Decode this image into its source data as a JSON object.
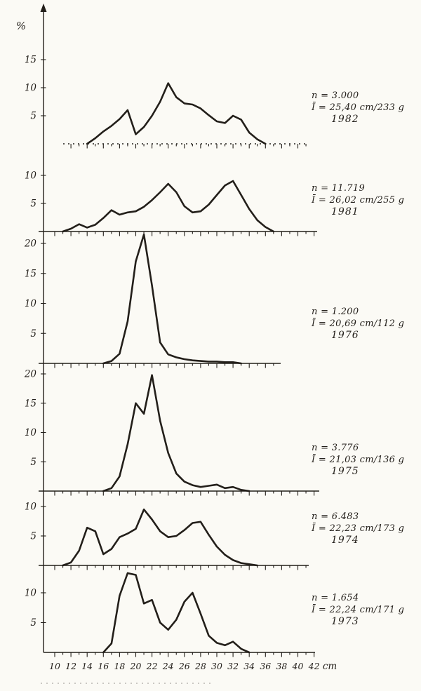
{
  "chart_data": {
    "type": "line",
    "xlabel": "cm",
    "ylabel": "%",
    "x_tick_labels": [
      "10",
      "12",
      "14",
      "16",
      "18",
      "20",
      "22",
      "24",
      "26",
      "28",
      "30",
      "32",
      "34",
      "36",
      "38",
      "40",
      "42"
    ],
    "panels": [
      {
        "year": "1982",
        "n_label": "n = 3.000",
        "mean_label": "Ī = 25,40 cm/233 g",
        "yticks": [
          5,
          10,
          15
        ],
        "x": [
          14,
          15,
          16,
          17,
          18,
          19,
          20,
          21,
          22,
          23,
          24,
          25,
          26,
          27,
          28,
          29,
          30,
          31,
          32,
          33,
          34,
          35,
          36
        ],
        "values": [
          0,
          1.0,
          2.2,
          3.2,
          4.4,
          6.0,
          1.7,
          3.0,
          5.0,
          7.5,
          10.8,
          8.3,
          7.2,
          7.0,
          6.3,
          5.1,
          4.0,
          3.7,
          5.0,
          4.3,
          2.0,
          0.8,
          0
        ]
      },
      {
        "year": "1981",
        "n_label": "n = 11.719",
        "mean_label": "Ī = 26,02 cm/255 g",
        "yticks": [
          5,
          10
        ],
        "x": [
          11,
          12,
          13,
          14,
          15,
          16,
          17,
          18,
          19,
          20,
          21,
          22,
          23,
          24,
          25,
          26,
          27,
          28,
          29,
          30,
          31,
          32,
          33,
          34,
          35,
          36,
          37
        ],
        "values": [
          0,
          0.5,
          1.3,
          0.7,
          1.2,
          2.4,
          3.8,
          3.0,
          3.4,
          3.6,
          4.4,
          5.6,
          7.0,
          8.5,
          7.0,
          4.5,
          3.4,
          3.6,
          4.8,
          6.5,
          8.2,
          9.0,
          6.5,
          4.0,
          2.0,
          0.8,
          0
        ]
      },
      {
        "year": "1976",
        "n_label": "n = 1.200",
        "mean_label": "Ī = 20,69 cm/112 g",
        "yticks": [
          5,
          10,
          15,
          20
        ],
        "x": [
          16,
          17,
          18,
          19,
          20,
          21,
          22,
          23,
          24,
          25,
          26,
          27,
          28,
          29,
          30,
          31,
          32,
          33
        ],
        "values": [
          0,
          0.4,
          1.6,
          7.0,
          17.0,
          21.5,
          13.0,
          3.5,
          1.5,
          1.0,
          0.7,
          0.5,
          0.4,
          0.3,
          0.3,
          0.2,
          0.2,
          0
        ]
      },
      {
        "year": "1975",
        "n_label": "n = 3.776",
        "mean_label": "Ī = 21,03 cm/136 g",
        "yticks": [
          5,
          10,
          15,
          20
        ],
        "x": [
          16,
          17,
          18,
          19,
          20,
          21,
          22,
          23,
          24,
          25,
          26,
          27,
          28,
          29,
          30,
          31,
          32,
          33,
          34
        ],
        "values": [
          0,
          0.5,
          2.5,
          8.0,
          15.0,
          13.2,
          19.8,
          12.0,
          6.5,
          3.0,
          1.6,
          1.0,
          0.7,
          0.9,
          1.1,
          0.5,
          0.7,
          0.2,
          0
        ]
      },
      {
        "year": "1974",
        "n_label": "n = 6.483",
        "mean_label": "Ī = 22,23 cm/173 g",
        "yticks": [
          5,
          10
        ],
        "x": [
          11,
          12,
          13,
          14,
          15,
          16,
          17,
          18,
          19,
          20,
          21,
          22,
          23,
          24,
          25,
          26,
          27,
          28,
          29,
          30,
          31,
          32,
          33,
          34,
          35
        ],
        "values": [
          0,
          0.5,
          2.5,
          6.4,
          5.8,
          1.9,
          2.8,
          4.8,
          5.4,
          6.2,
          9.5,
          7.8,
          5.8,
          4.8,
          5.0,
          6.0,
          7.2,
          7.4,
          5.2,
          3.2,
          1.8,
          0.9,
          0.4,
          0.2,
          0
        ]
      },
      {
        "year": "1973",
        "n_label": "n = 1.654",
        "mean_label": "Ī = 22,24 cm/171 g",
        "yticks": [
          5,
          10
        ],
        "x": [
          16,
          17,
          18,
          19,
          20,
          21,
          22,
          23,
          24,
          25,
          26,
          27,
          28,
          29,
          30,
          31,
          32,
          33,
          34
        ],
        "values": [
          0,
          1.5,
          9.5,
          13.3,
          13.0,
          8.2,
          8.8,
          5.0,
          3.8,
          5.5,
          8.5,
          10.0,
          6.5,
          2.8,
          1.6,
          1.2,
          1.8,
          0.6,
          0
        ]
      }
    ]
  }
}
